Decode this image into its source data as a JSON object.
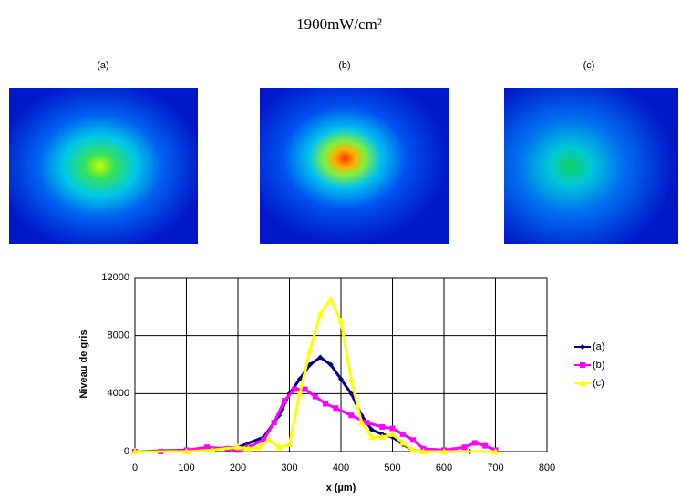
{
  "title": "1900mW/cm²",
  "images": [
    {
      "label": "(a)"
    },
    {
      "label": "(b)"
    },
    {
      "label": "(c)"
    }
  ],
  "chart_data": {
    "type": "line",
    "ylabel": "Niveau de gris",
    "xlabel": "x (µm)",
    "xlim": [
      0,
      800
    ],
    "xticks": [
      0,
      100,
      200,
      300,
      400,
      500,
      600,
      700,
      800
    ],
    "ylim": [
      0,
      12000
    ],
    "yticks": [
      0,
      4000,
      8000,
      12000
    ],
    "grid": true,
    "legend": "right",
    "series": [
      {
        "name": "(a)",
        "color": "#000080",
        "marker": "diamond",
        "x": [
          0,
          100,
          150,
          200,
          250,
          280,
          300,
          320,
          340,
          360,
          380,
          400,
          420,
          440,
          460,
          480,
          500,
          520,
          540,
          560,
          600,
          650,
          700
        ],
        "values": [
          0,
          100,
          200,
          300,
          1000,
          2500,
          4000,
          5000,
          6000,
          6500,
          6000,
          5000,
          4000,
          2500,
          1500,
          1200,
          1000,
          500,
          100,
          0,
          0,
          0,
          0
        ]
      },
      {
        "name": "(b)",
        "color": "#ff00ff",
        "marker": "square",
        "x": [
          0,
          50,
          100,
          140,
          180,
          200,
          220,
          250,
          270,
          290,
          310,
          330,
          350,
          370,
          390,
          420,
          450,
          480,
          500,
          520,
          540,
          560,
          600,
          640,
          660,
          680,
          700
        ],
        "values": [
          0,
          0,
          100,
          300,
          200,
          100,
          300,
          800,
          2000,
          3500,
          4300,
          4300,
          3800,
          3300,
          3000,
          2500,
          2000,
          1700,
          1600,
          1200,
          800,
          200,
          100,
          300,
          600,
          400,
          100
        ]
      },
      {
        "name": "(c)",
        "color": "#ffff00",
        "marker": "triangle",
        "x": [
          0,
          100,
          150,
          200,
          220,
          240,
          260,
          280,
          300,
          320,
          340,
          360,
          380,
          400,
          420,
          440,
          460,
          480,
          500,
          520,
          540,
          560,
          600,
          700
        ],
        "values": [
          0,
          0,
          100,
          300,
          200,
          300,
          800,
          300,
          500,
          4000,
          7000,
          9500,
          10500,
          9000,
          5000,
          2000,
          1000,
          1000,
          1200,
          600,
          100,
          0,
          0,
          0
        ]
      }
    ]
  }
}
